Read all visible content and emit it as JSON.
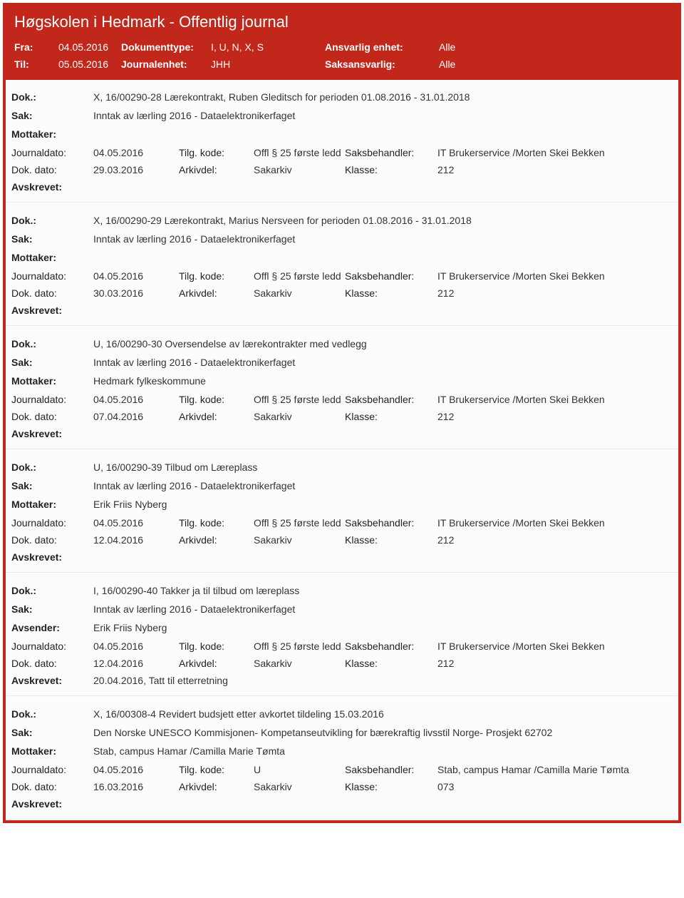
{
  "header": {
    "title": "Høgskolen i Hedmark - Offentlig journal",
    "fra_label": "Fra:",
    "fra_value": "04.05.2016",
    "til_label": "Til:",
    "til_value": "05.05.2016",
    "dokumenttype_label": "Dokumenttype:",
    "dokumenttype_value": "I, U, N, X, S",
    "journalenhet_label": "Journalenhet:",
    "journalenhet_value": "JHH",
    "ansvarlig_label": "Ansvarlig enhet:",
    "ansvarlig_value": "Alle",
    "saksansvarlig_label": "Saksansvarlig:",
    "saksansvarlig_value": "Alle"
  },
  "labels": {
    "dok": "Dok.:",
    "sak": "Sak:",
    "mottaker": "Mottaker:",
    "avsender": "Avsender:",
    "journaldato": "Journaldato:",
    "tilgkode": "Tilg. kode:",
    "saksbehandler": "Saksbehandler:",
    "dokdato": "Dok. dato:",
    "arkivdel": "Arkivdel:",
    "klasse": "Klasse:",
    "avskrevet": "Avskrevet:"
  },
  "entries": [
    {
      "dok": "X, 16/00290-28 Lærekontrakt, Ruben Gleditsch for perioden 01.08.2016 - 31.01.2018",
      "sak": "Inntak av lærling 2016 - Dataelektronikerfaget",
      "party_label": "Mottaker:",
      "party": "",
      "journaldato": "04.05.2016",
      "tilgkode": "Offl § 25 første ledd",
      "saksbehandler": "IT Brukerservice /Morten Skei Bekken",
      "dokdato": "29.03.2016",
      "arkivdel": "Sakarkiv",
      "klasse": "212",
      "avskrevet": ""
    },
    {
      "dok": "X, 16/00290-29 Lærekontrakt, Marius Nersveen for perioden 01.08.2016 - 31.01.2018",
      "sak": "Inntak av lærling 2016 - Dataelektronikerfaget",
      "party_label": "Mottaker:",
      "party": "",
      "journaldato": "04.05.2016",
      "tilgkode": "Offl § 25 første ledd",
      "saksbehandler": "IT Brukerservice /Morten Skei Bekken",
      "dokdato": "30.03.2016",
      "arkivdel": "Sakarkiv",
      "klasse": "212",
      "avskrevet": ""
    },
    {
      "dok": "U, 16/00290-30 Oversendelse av lærekontrakter med vedlegg",
      "sak": "Inntak av lærling 2016 - Dataelektronikerfaget",
      "party_label": "Mottaker:",
      "party": "Hedmark fylkeskommune",
      "journaldato": "04.05.2016",
      "tilgkode": "Offl § 25 første ledd",
      "saksbehandler": "IT Brukerservice /Morten Skei Bekken",
      "dokdato": "07.04.2016",
      "arkivdel": "Sakarkiv",
      "klasse": "212",
      "avskrevet": ""
    },
    {
      "dok": "U, 16/00290-39 Tilbud om Læreplass",
      "sak": "Inntak av lærling 2016 - Dataelektronikerfaget",
      "party_label": "Mottaker:",
      "party": "Erik Friis Nyberg",
      "journaldato": "04.05.2016",
      "tilgkode": "Offl § 25 første ledd",
      "saksbehandler": "IT Brukerservice /Morten Skei Bekken",
      "dokdato": "12.04.2016",
      "arkivdel": "Sakarkiv",
      "klasse": "212",
      "avskrevet": ""
    },
    {
      "dok": "I, 16/00290-40 Takker ja til tilbud om læreplass",
      "sak": "Inntak av lærling 2016 - Dataelektronikerfaget",
      "party_label": "Avsender:",
      "party": "Erik Friis Nyberg",
      "journaldato": "04.05.2016",
      "tilgkode": "Offl § 25 første ledd",
      "saksbehandler": "IT Brukerservice /Morten Skei Bekken",
      "dokdato": "12.04.2016",
      "arkivdel": "Sakarkiv",
      "klasse": "212",
      "avskrevet": "20.04.2016, Tatt til etterretning"
    },
    {
      "dok": "X, 16/00308-4 Revidert budsjett etter avkortet tildeling 15.03.2016",
      "sak": "Den Norske UNESCO Kommisjonen- Kompetanseutvikling for bærekraftig livsstil Norge- Prosjekt 62702",
      "party_label": "Mottaker:",
      "party": "Stab, campus Hamar /Camilla Marie Tømta",
      "journaldato": "04.05.2016",
      "tilgkode": "U",
      "saksbehandler": "Stab, campus Hamar /Camilla Marie Tømta",
      "dokdato": "16.03.2016",
      "arkivdel": "Sakarkiv",
      "klasse": "073",
      "avskrevet": ""
    }
  ]
}
